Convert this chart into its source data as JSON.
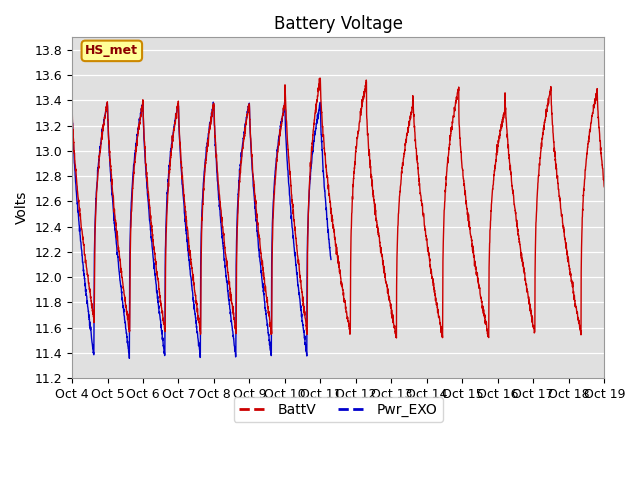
{
  "title": "Battery Voltage",
  "ylabel": "Volts",
  "xlabel": "",
  "ylim": [
    11.2,
    13.9
  ],
  "yticks": [
    11.2,
    11.4,
    11.6,
    11.8,
    12.0,
    12.2,
    12.4,
    12.6,
    12.8,
    13.0,
    13.2,
    13.4,
    13.6,
    13.8
  ],
  "xtick_labels": [
    "Oct 4",
    "Oct 5",
    "Oct 6",
    "Oct 7",
    "Oct 8",
    "Oct 9",
    "Oct 10",
    "Oct 11",
    "Oct 12",
    "Oct 13",
    "Oct 14",
    "Oct 15",
    "Oct 16",
    "Oct 17",
    "Oct 18",
    "Oct 19"
  ],
  "line1_color": "#cc0000",
  "line2_color": "#0000cc",
  "line1_label": "BattV",
  "line2_label": "Pwr_EXO",
  "annotation_label": "HS_met",
  "annotation_bg": "#ffff99",
  "annotation_border": "#cc8800",
  "bg_color": "#e0e0e0",
  "fig_bg": "#ffffff",
  "title_fontsize": 12,
  "axis_fontsize": 10,
  "tick_fontsize": 9,
  "n_days": 15,
  "blue_cutoff_day": 7.3,
  "battv_peaks": [
    13.38,
    13.38,
    13.38,
    13.38,
    13.38,
    13.38,
    13.58,
    13.55,
    13.35,
    13.5,
    13.32,
    13.5,
    13.48,
    13.5,
    13.35
  ],
  "battv_lows": [
    11.65,
    11.55,
    11.55,
    11.55,
    11.55,
    11.55,
    11.55,
    11.55,
    11.52,
    11.52,
    11.52,
    11.55,
    11.55,
    11.55,
    11.7
  ],
  "pwr_peaks": [
    13.38,
    13.38,
    13.38,
    13.38,
    13.38,
    13.38,
    13.38,
    13.38
  ],
  "pwr_lows": [
    11.37,
    11.37,
    11.37,
    11.37,
    11.37,
    11.37,
    11.37,
    11.37
  ]
}
